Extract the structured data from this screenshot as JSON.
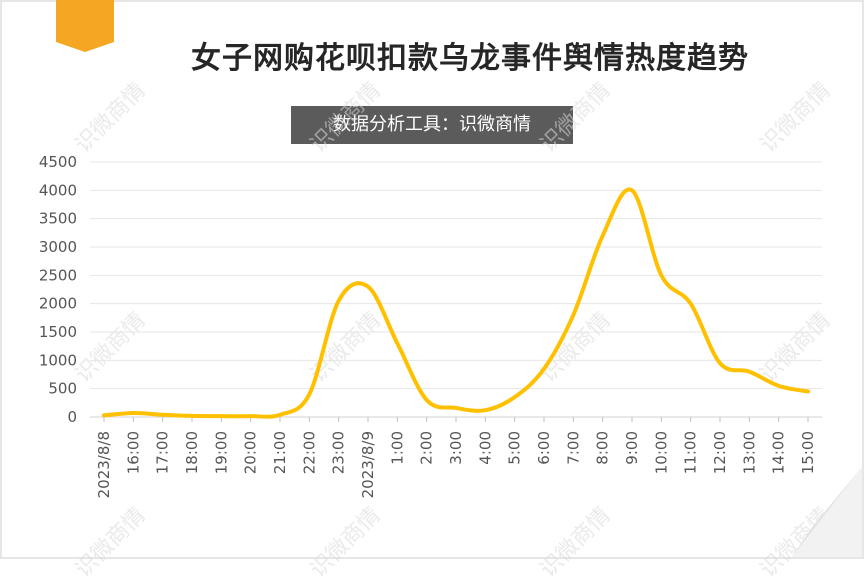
{
  "title": "女子网购花呗扣款乌龙事件舆情热度趋势",
  "source_label": "数据分析工具：识微商情",
  "watermark_text": "识微商情",
  "colors": {
    "line": "#FFC000",
    "ribbon": "#F5A623",
    "grid": "#e6e6e6",
    "source_bg": "#5b5b5b"
  },
  "chart_data": {
    "type": "line",
    "title": "女子网购花呗扣款乌龙事件舆情热度趋势",
    "xlabel": "",
    "ylabel": "",
    "ylim": [
      0,
      4500
    ],
    "yticks": [
      0,
      500,
      1000,
      1500,
      2000,
      2500,
      3000,
      3500,
      4000,
      4500
    ],
    "grid": true,
    "legend": "none",
    "categories": [
      "2023/8/8",
      "16:00",
      "17:00",
      "18:00",
      "19:00",
      "20:00",
      "21:00",
      "22:00",
      "23:00",
      "2023/8/9",
      "1:00",
      "2:00",
      "3:00",
      "4:00",
      "5:00",
      "6:00",
      "7:00",
      "8:00",
      "9:00",
      "10:00",
      "11:00",
      "12:00",
      "13:00",
      "14:00",
      "15:00"
    ],
    "series": [
      {
        "values": [
          30,
          70,
          40,
          20,
          15,
          15,
          40,
          400,
          2050,
          2300,
          1300,
          300,
          160,
          120,
          350,
          850,
          1800,
          3200,
          4000,
          2500,
          2000,
          950,
          800,
          550,
          450
        ]
      }
    ]
  }
}
